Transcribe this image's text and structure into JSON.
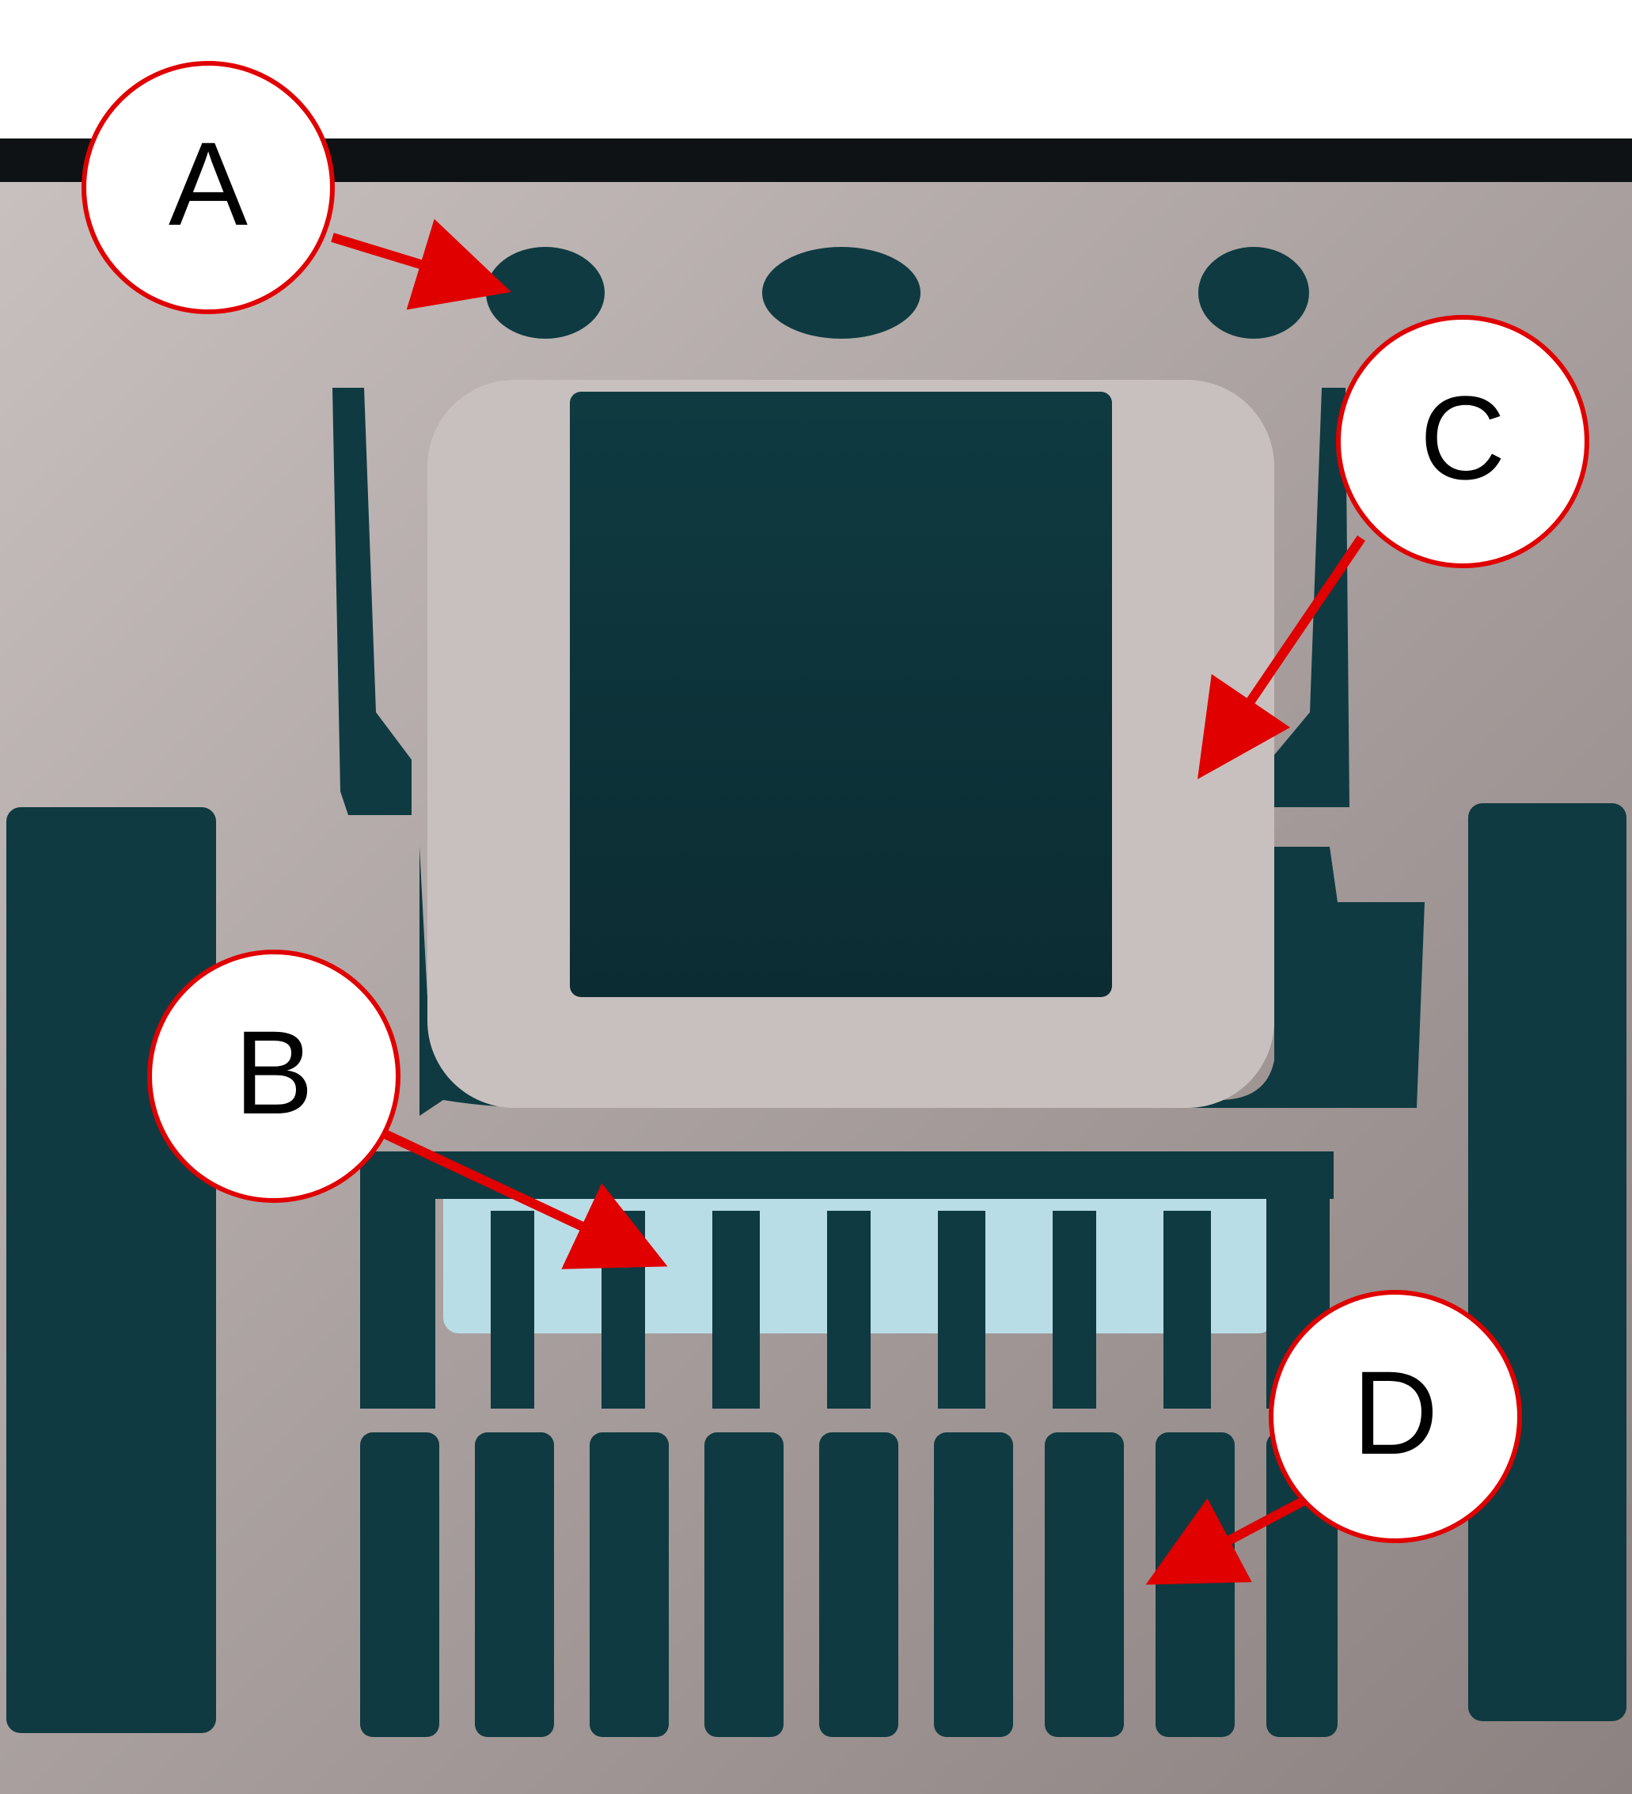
{
  "colors": {
    "background": "#ffffff",
    "frame_edge": "#0e1214",
    "metal": "#a89f9e",
    "metal_light": "#c8c0be",
    "metal_dark": "#8c8281",
    "cutout": "#0f3a41",
    "cutout_dark": "#0b2c32",
    "substrate_glow": "#b9dde6",
    "callout_stroke": "#e00000",
    "callout_fill": "#ffffff",
    "arrow": "#e00000"
  },
  "callouts": {
    "a": {
      "letter": "A"
    },
    "b": {
      "letter": "B"
    },
    "c": {
      "letter": "C"
    },
    "d": {
      "letter": "D"
    }
  }
}
